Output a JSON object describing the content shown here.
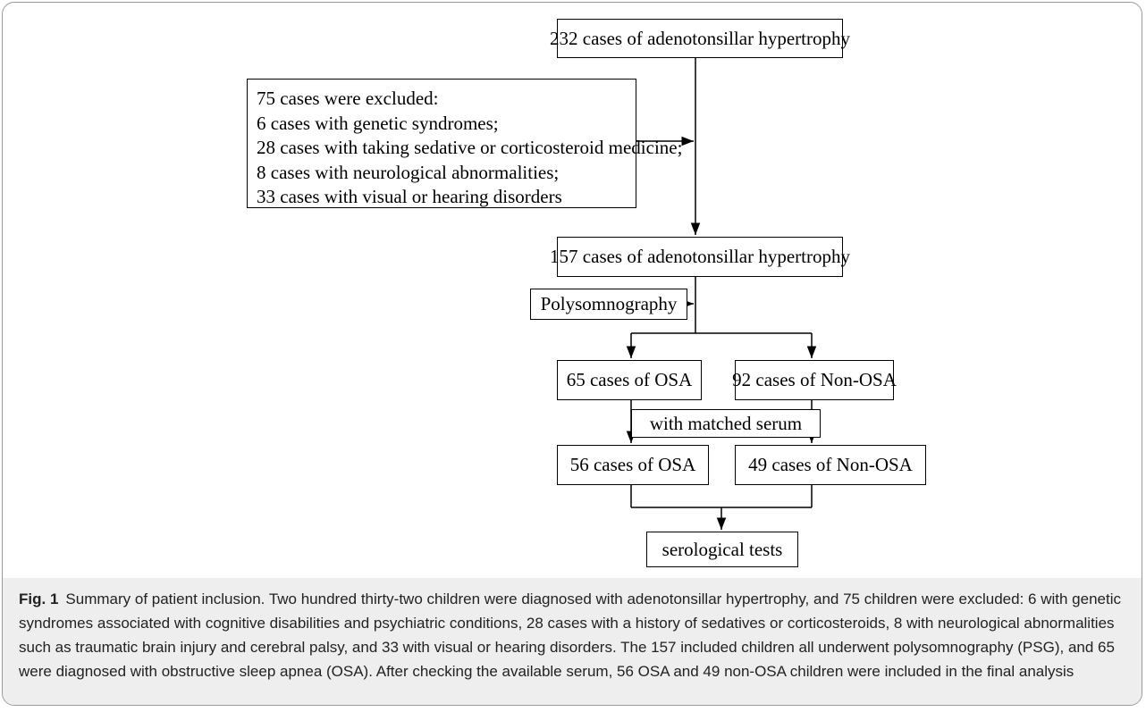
{
  "nodes": [
    {
      "label": "232 cases of adenotonsillar hypertrophy"
    },
    {
      "lines": [
        "75 cases were excluded:",
        "6 cases with genetic syndromes;",
        "28 cases with taking sedative or corticosteroid medicine;",
        "8 cases with neurological abnormalities;",
        "33 cases with visual or hearing disorders"
      ]
    },
    {
      "label": "157 cases of adenotonsillar hypertrophy"
    },
    {
      "label": "Polysomnography"
    },
    {
      "label": "65 cases of  OSA"
    },
    {
      "label": "92 cases of Non-OSA"
    },
    {
      "label": "with matched serum"
    },
    {
      "label": "56 cases of OSA"
    },
    {
      "label": "49 cases of Non-OSA"
    },
    {
      "label": "serological tests"
    }
  ],
  "caption": {
    "label": "Fig. 1",
    "text": "Summary of patient inclusion. Two hundred thirty-two children were diagnosed with adenotonsillar hypertrophy, and 75 children were excluded: 6 with genetic syndromes associated with cognitive disabilities and psychiatric conditions, 28 cases with a history of sedatives or corticosteroids, 8 with neurological abnormalities such as traumatic brain injury and cerebral palsy, and 33 with visual or hearing disorders. The 157 included children all underwent polysomnography (PSG), and 65 were diagnosed with obstructive sleep apnea (OSA). After checking the available serum, 56 OSA and 49 non-OSA children were included in the final analysis"
  }
}
